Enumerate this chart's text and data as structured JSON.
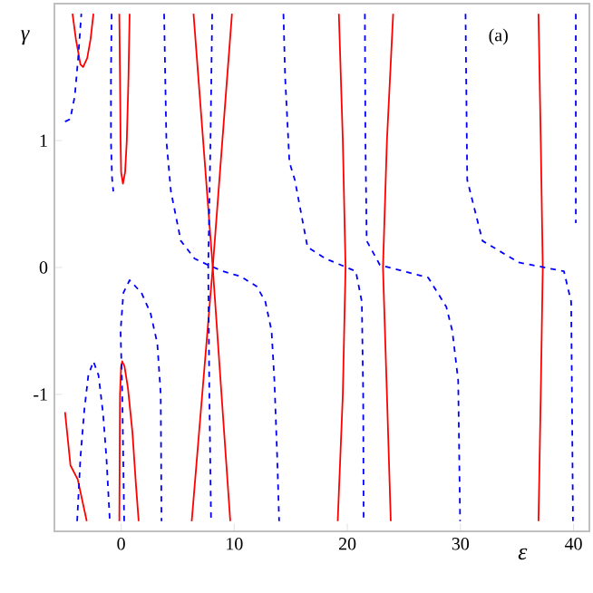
{
  "chart_data": {
    "type": "line",
    "xlabel": "ε",
    "ylabel": "γ",
    "annotations": [
      "(a)"
    ],
    "xlim": [
      -5.9,
      41.4
    ],
    "ylim": [
      -2.08,
      2.08
    ],
    "xticks": [
      0,
      10,
      20,
      30,
      40
    ],
    "yticks": [
      -1,
      0,
      1
    ],
    "series": [
      {
        "color": "#ff0000",
        "line_style": "solid",
        "x": [
          -4.96,
          -4.48,
          -3.84,
          -3.04
        ],
        "values": [
          -1.14,
          -1.56,
          -1.67,
          -2.0
        ]
      },
      {
        "color": "#ff0000",
        "line_style": "solid",
        "x": [
          -4.3,
          -4.0,
          -3.6,
          -3.36,
          -3.0,
          -2.7,
          -2.45
        ],
        "values": [
          2.0,
          1.8,
          1.6,
          1.58,
          1.65,
          1.8,
          2.0
        ]
      },
      {
        "color": "#ff0000",
        "line_style": "solid",
        "x": [
          -0.16,
          -0.1,
          -0.05,
          0.0,
          0.16,
          0.35,
          0.5,
          0.65,
          0.75
        ],
        "values": [
          2.0,
          1.5,
          1.0,
          0.75,
          0.66,
          0.75,
          1.0,
          1.5,
          2.0
        ]
      },
      {
        "color": "#ff0000",
        "line_style": "solid",
        "x": [
          -0.16,
          -0.1,
          0.0,
          0.1,
          0.3,
          0.6,
          1.0,
          1.3,
          1.55
        ],
        "values": [
          -2.0,
          -1.0,
          -0.78,
          -0.74,
          -0.78,
          -0.95,
          -1.3,
          -1.7,
          -2.0
        ]
      },
      {
        "color": "#ff0000",
        "line_style": "solid",
        "x": [
          6.4,
          8.1,
          9.65
        ],
        "values": [
          2.0,
          0.0,
          -2.0
        ]
      },
      {
        "color": "#ff0000",
        "line_style": "solid",
        "x": [
          9.8,
          8.1,
          6.24
        ],
        "values": [
          2.0,
          0.0,
          -2.0
        ]
      },
      {
        "color": "#ff0000",
        "line_style": "solid",
        "x": [
          19.25,
          19.6,
          19.84,
          19.6,
          19.15
        ],
        "values": [
          2.0,
          1.0,
          0.0,
          -1.0,
          -2.0
        ]
      },
      {
        "color": "#ff0000",
        "line_style": "solid",
        "x": [
          24.05,
          23.5,
          23.15,
          23.5,
          23.84
        ],
        "values": [
          2.0,
          1.0,
          0.0,
          -1.0,
          -2.0
        ]
      },
      {
        "color": "#ff0000",
        "line_style": "solid",
        "x": [
          36.9,
          37.1,
          37.28,
          37.1,
          36.9
        ],
        "values": [
          2.0,
          1.0,
          0.0,
          -1.0,
          -2.0
        ]
      },
      {
        "color": "#0000ff",
        "line_style": "dashed",
        "x": [
          -4.96,
          -4.5,
          -4.1,
          -3.8,
          -3.52
        ],
        "values": [
          1.15,
          1.17,
          1.35,
          1.65,
          2.0
        ]
      },
      {
        "color": "#0000ff",
        "line_style": "dashed",
        "x": [
          -0.84,
          -0.9,
          -0.9,
          -0.8,
          -0.69
        ],
        "values": [
          2.0,
          1.5,
          1.0,
          0.7,
          0.6
        ]
      },
      {
        "color": "#0000ff",
        "line_style": "dashed",
        "x": [
          3.8,
          3.9,
          4.0,
          4.4,
          5.28,
          6.5,
          7.68,
          9.0,
          10.56,
          12.0,
          12.75,
          13.3,
          13.55,
          13.8,
          13.97
        ],
        "values": [
          2.0,
          1.5,
          1.0,
          0.6,
          0.21,
          0.07,
          0.02,
          -0.03,
          -0.07,
          -0.15,
          -0.27,
          -0.5,
          -0.89,
          -1.5,
          -2.0
        ]
      },
      {
        "color": "#0000ff",
        "line_style": "dashed",
        "x": [
          0.27,
          0.1,
          -0.05,
          0.2,
          0.75,
          1.8,
          2.6,
          3.2,
          3.5,
          3.57
        ],
        "values": [
          -2.0,
          -1.0,
          -0.5,
          -0.2,
          -0.1,
          -0.2,
          -0.36,
          -0.6,
          -1.0,
          -2.0
        ]
      },
      {
        "color": "#0000ff",
        "line_style": "dashed",
        "x": [
          -3.89,
          -3.6,
          -3.25,
          -2.9,
          -2.45,
          -2.0,
          -1.6,
          -1.3,
          -1.0
        ],
        "values": [
          -2.0,
          -1.5,
          -1.12,
          -0.85,
          -0.74,
          -0.85,
          -1.15,
          -1.5,
          -2.0
        ]
      },
      {
        "color": "#0000ff",
        "line_style": "dashed",
        "x": [
          8.05,
          7.9,
          7.7,
          7.8,
          7.95
        ],
        "values": [
          2.0,
          1.0,
          0.0,
          -1.0,
          -2.0
        ]
      },
      {
        "color": "#0000ff",
        "line_style": "dashed",
        "x": [
          14.35,
          14.5,
          14.88,
          15.36,
          16.48,
          18.08,
          20.75,
          21.28,
          21.4,
          21.44
        ],
        "values": [
          2.0,
          1.5,
          0.83,
          0.69,
          0.16,
          0.07,
          -0.03,
          -0.27,
          -1.0,
          -2.0
        ]
      },
      {
        "color": "#0000ff",
        "line_style": "dashed",
        "x": [
          21.55,
          21.6,
          21.71,
          22.88,
          27.15,
          28.75,
          29.28,
          29.8,
          29.97
        ],
        "values": [
          2.0,
          1.0,
          0.21,
          0.02,
          -0.08,
          -0.31,
          -0.5,
          -0.89,
          -2.0
        ]
      },
      {
        "color": "#0000ff",
        "line_style": "dashed",
        "x": [
          30.45,
          30.6,
          31.95,
          35.15,
          39.15,
          39.79,
          39.95
        ],
        "values": [
          2.0,
          0.69,
          0.21,
          0.04,
          -0.03,
          -0.27,
          -2.0
        ]
      },
      {
        "color": "#0000ff",
        "line_style": "dashed",
        "x": [
          40.2,
          40.2
        ],
        "values": [
          2.0,
          0.35
        ]
      }
    ]
  }
}
